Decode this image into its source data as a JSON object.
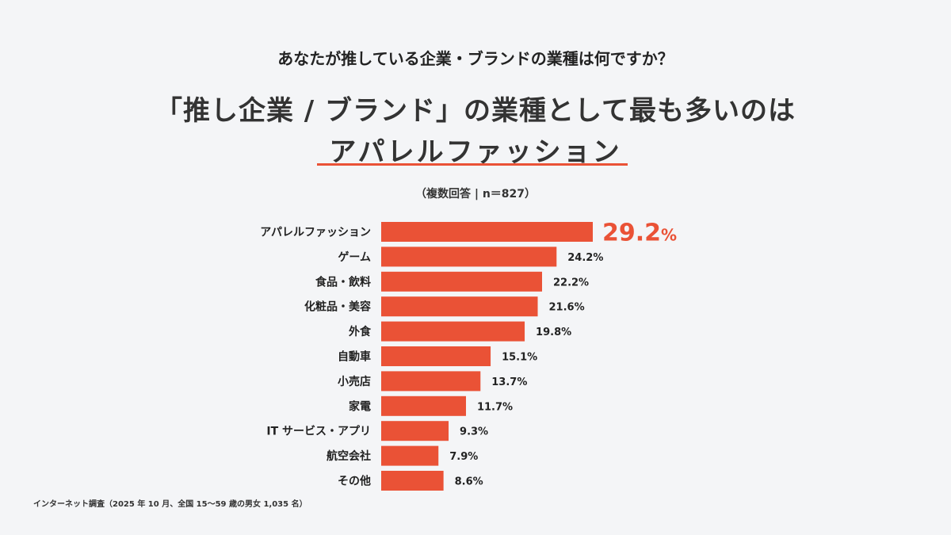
{
  "header": {
    "question": "あなたが推している企業・ブランドの業種は何ですか？",
    "headline_line1": "「推し企業 / ブランド」の業種として最も多いのは",
    "headline_line2": "アパレルファッション",
    "note": "（複数回答 | n＝827）"
  },
  "footnote": "インターネット調査（2025 年 10 月、全国 15〜59 歳の男女 1,035 名）",
  "colors": {
    "bar": "#ea5236",
    "highlight_text": "#ea5236",
    "text": "#222222",
    "background": "#f4f5f7"
  },
  "chart_data": {
    "type": "bar",
    "orientation": "horizontal",
    "title": "「推し企業 / ブランド」の業種として最も多いのはアパレルファッション",
    "categories": [
      "アパレルファッション",
      "ゲーム",
      "食品・飲料",
      "化粧品・美容",
      "外食",
      "自動車",
      "小売店",
      "家電",
      "IT サービス・アプリ",
      "航空会社",
      "その他"
    ],
    "values": [
      29.2,
      24.2,
      22.2,
      21.6,
      19.8,
      15.1,
      13.7,
      11.7,
      9.3,
      7.9,
      8.6
    ],
    "value_labels": [
      "29.2",
      "24.2%",
      "22.2%",
      "21.6%",
      "19.8%",
      "15.1%",
      "13.7%",
      "11.7%",
      "9.3%",
      "7.9%",
      "8.6%"
    ],
    "highlight_suffix": "%",
    "unit": "%",
    "xlim": [
      0,
      30
    ],
    "grid": false,
    "legend": "none"
  }
}
